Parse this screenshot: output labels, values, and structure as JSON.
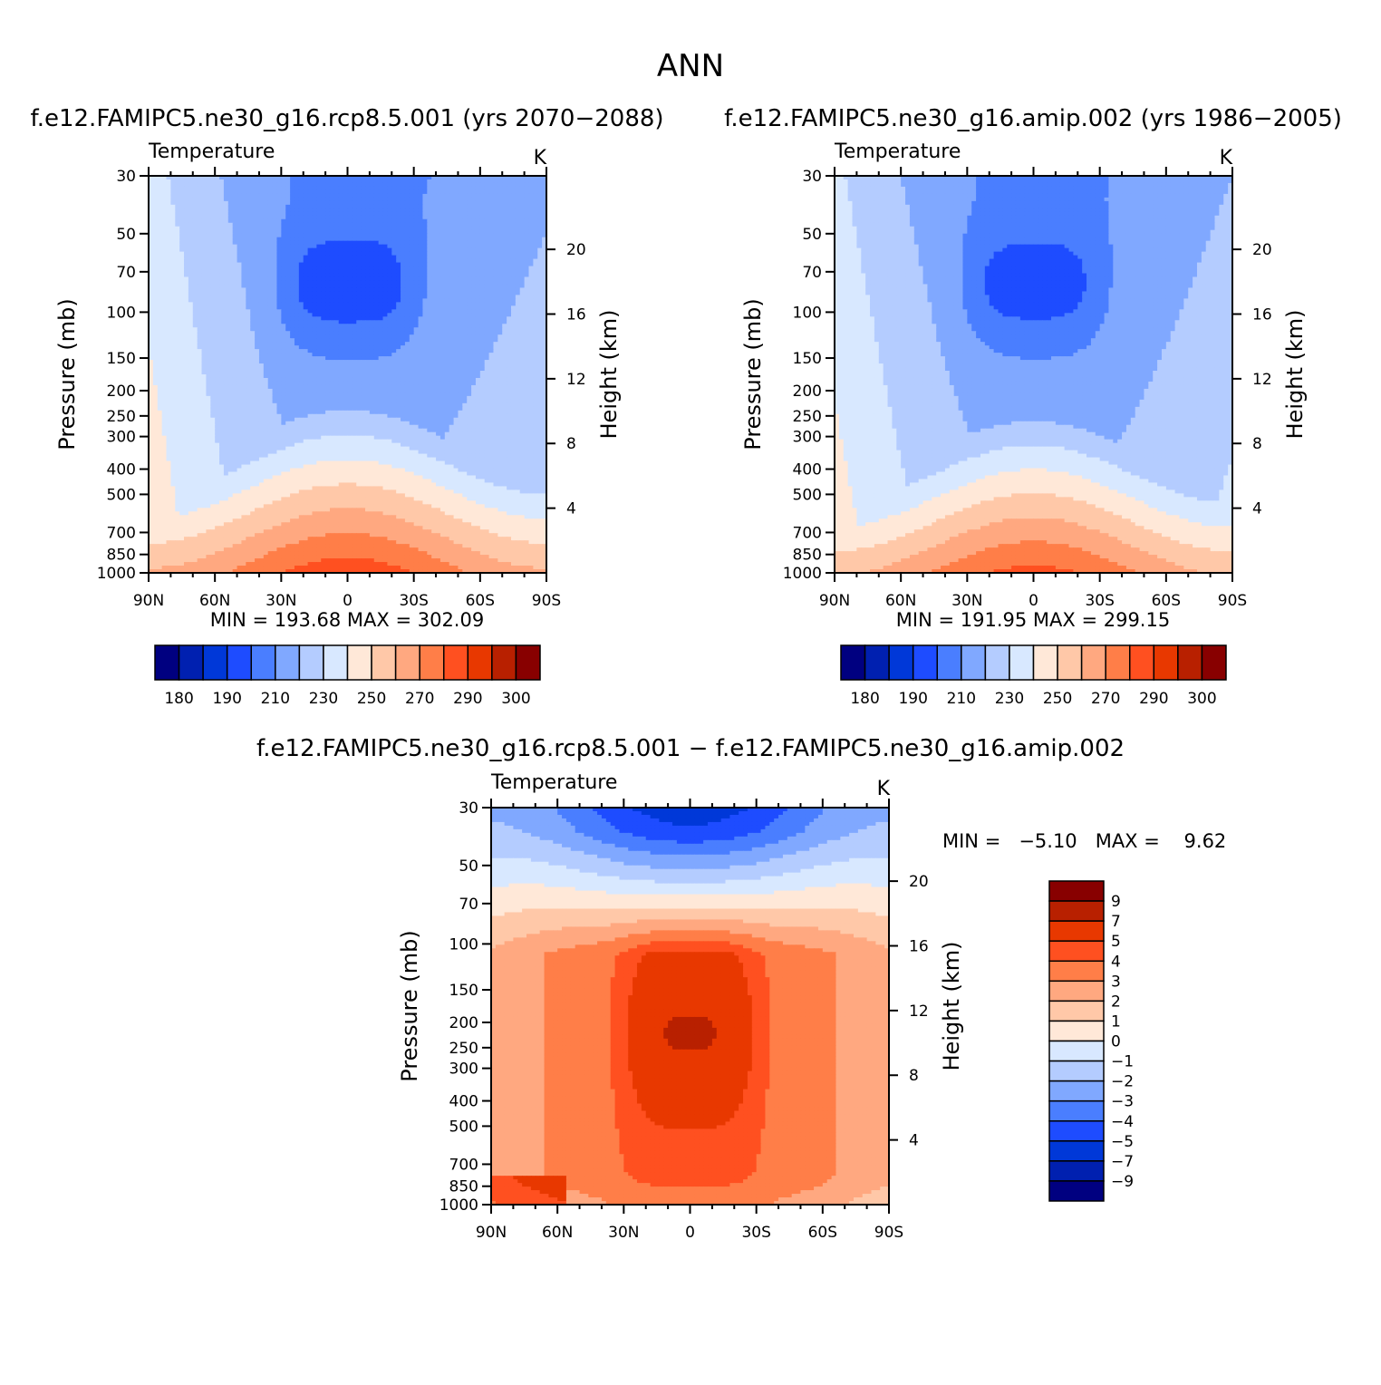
{
  "figure": {
    "title": "ANN",
    "diff_title": "f.e12.FAMIPC5.ne30_g16.rcp8.5.001 − f.e12.FAMIPC5.ne30_g16.amip.002",
    "colors": {
      "abs": [
        "#000080",
        "#0020b0",
        "#0038d8",
        "#1e4cff",
        "#4a7eff",
        "#80a8ff",
        "#b4ccff",
        "#d8e8ff",
        "#ffe8d8",
        "#ffc8a8",
        "#ffa880",
        "#ff7e48",
        "#ff5020",
        "#e83800",
        "#b82000",
        "#880000"
      ],
      "diff": [
        "#000080",
        "#0020b0",
        "#0038d8",
        "#1e4cff",
        "#4a7eff",
        "#80a8ff",
        "#b4ccff",
        "#d8e8ff",
        "#ffe8d8",
        "#ffc8a8",
        "#ffa880",
        "#ff7e48",
        "#ff5020",
        "#e83800",
        "#b82000",
        "#880000"
      ]
    }
  },
  "panels": {
    "p1": {
      "title": "f.e12.FAMIPC5.ne30_g16.rcp8.5.001 (yrs 2070−2088)",
      "variable": "Temperature",
      "units": "K",
      "minmax": "MIN = 193.68   MAX = 302.09"
    },
    "p2": {
      "title": "f.e12.FAMIPC5.ne30_g16.amip.002 (yrs 1986−2005)",
      "variable": "Temperature",
      "units": "K",
      "minmax": "MIN = 191.95   MAX = 299.15"
    },
    "p3": {
      "variable": "Temperature",
      "units": "K",
      "minmax": "MIN =   −5.10   MAX =    9.62"
    }
  },
  "axes": {
    "ylabel": "Pressure (mb)",
    "ylabel_right": "Height (km)",
    "pressure_ticks": [
      "30",
      "50",
      "70",
      "100",
      "150",
      "200",
      "250",
      "300",
      "400",
      "500",
      "700",
      "850",
      "1000"
    ],
    "height_ticks": [
      "20",
      "16",
      "12",
      "8",
      "4"
    ],
    "lat_ticks": [
      "90N",
      "60N",
      "30N",
      "0",
      "30S",
      "60S",
      "90S"
    ]
  },
  "colorbars": {
    "abs_labels": [
      "180",
      "190",
      "210",
      "230",
      "250",
      "270",
      "290",
      "300"
    ],
    "diff_labels": [
      "9",
      "7",
      "5",
      "4",
      "3",
      "2",
      "1",
      "0",
      "−1",
      "−2",
      "−3",
      "−4",
      "−5",
      "−7",
      "−9"
    ]
  },
  "chart_data": [
    {
      "type": "heatmap",
      "title": "f.e12.FAMIPC5.ne30_g16.rcp8.5.001 (yrs 2070−2088)",
      "variable": "Temperature",
      "units": "K",
      "xlabel": "",
      "ylabel": "Pressure (mb)",
      "ylabel_right": "Height (km)",
      "x_ticks": [
        "90N",
        "60N",
        "30N",
        "0",
        "30S",
        "60S",
        "90S"
      ],
      "xlim": [
        90,
        -90
      ],
      "ylim": [
        1000,
        30
      ],
      "y_scale": "log",
      "min": 193.68,
      "max": 302.09,
      "levels": [
        180,
        185,
        190,
        200,
        210,
        220,
        230,
        240,
        250,
        260,
        270,
        280,
        290,
        295,
        300
      ],
      "field": {
        "tropo_base": 302,
        "tropo_amp": 24,
        "lapse": 78,
        "tropopause": 205,
        "cold_core": 33,
        "polar_north": 8,
        "south_strat": -8
      }
    },
    {
      "type": "heatmap",
      "title": "f.e12.FAMIPC5.ne30_g16.amip.002 (yrs 1986−2005)",
      "variable": "Temperature",
      "units": "K",
      "xlabel": "",
      "ylabel": "Pressure (mb)",
      "ylabel_right": "Height (km)",
      "x_ticks": [
        "90N",
        "60N",
        "30N",
        "0",
        "30S",
        "60S",
        "90S"
      ],
      "xlim": [
        90,
        -90
      ],
      "ylim": [
        1000,
        30
      ],
      "y_scale": "log",
      "min": 191.95,
      "max": 299.15,
      "levels": [
        180,
        185,
        190,
        200,
        210,
        220,
        230,
        240,
        250,
        260,
        270,
        280,
        290,
        295,
        300
      ],
      "field": {
        "tropo_base": 299,
        "tropo_amp": 24,
        "lapse": 80,
        "tropopause": 203,
        "cold_core": 31,
        "polar_north": 6,
        "south_strat": -6
      }
    },
    {
      "type": "heatmap",
      "title": "f.e12.FAMIPC5.ne30_g16.rcp8.5.001 − f.e12.FAMIPC5.ne30_g16.amip.002",
      "variable": "Temperature",
      "units": "K",
      "xlabel": "",
      "ylabel": "Pressure (mb)",
      "ylabel_right": "Height (km)",
      "x_ticks": [
        "90N",
        "60N",
        "30N",
        "0",
        "30S",
        "60S",
        "90S"
      ],
      "xlim": [
        90,
        -90
      ],
      "ylim": [
        1000,
        30
      ],
      "y_scale": "log",
      "min": -5.1,
      "max": 9.62,
      "levels": [
        -9,
        -7,
        -5,
        -4,
        -3,
        -2,
        -1,
        0,
        1,
        2,
        3,
        4,
        5,
        7,
        9
      ],
      "field": {
        "upper_trop_peak": 6.5,
        "surface_warming": 4.5,
        "strat_cooling": -4.5
      }
    }
  ]
}
